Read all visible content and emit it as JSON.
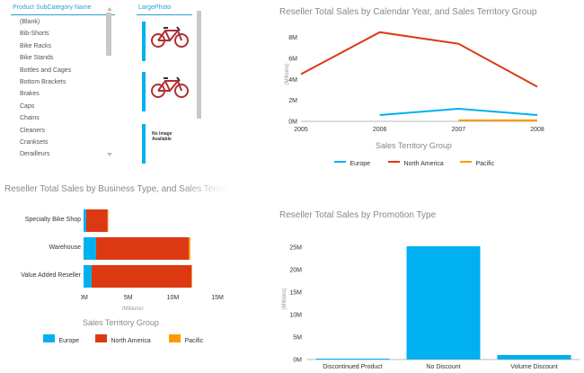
{
  "subcategory_slicer": {
    "header": "Product SubCategory Name",
    "items": [
      "(Blank)",
      "Bib-Shorts",
      "Bike Racks",
      "Bike Stands",
      "Bottles and Cages",
      "Bottom Brackets",
      "Brakes",
      "Caps",
      "Chains",
      "Cleaners",
      "Cranksets",
      "Derailleurs"
    ]
  },
  "photo_slicer": {
    "header": "LargePhoto",
    "no_image_text": "No Image Available"
  },
  "colors": {
    "europe": "#00b0f0",
    "north_america": "#dc3912",
    "pacific": "#ff9900",
    "accent": "#2a9fd6"
  },
  "legend": {
    "title": "Sales Territory Group",
    "europe": "Europe",
    "north_america": "North America",
    "pacific": "Pacific"
  },
  "chart_data": [
    {
      "type": "line",
      "title": "Reseller Total Sales by Calendar Year, and Sales Territory Group",
      "ylabel": "(Millions)",
      "x": [
        2005,
        2006,
        2007,
        2008
      ],
      "x_ticks": [
        "2005",
        "2006",
        "2007",
        "2008"
      ],
      "y_ticks": [
        "0M",
        "2M",
        "4M",
        "6M",
        "8M"
      ],
      "ylim": [
        0,
        9
      ],
      "series": [
        {
          "name": "North America",
          "values": [
            4.5,
            8.5,
            7.4,
            3.3
          ]
        },
        {
          "name": "Europe",
          "values": [
            null,
            0.6,
            1.2,
            0.6
          ]
        },
        {
          "name": "Pacific",
          "values": [
            null,
            null,
            0.1,
            0.1
          ]
        }
      ]
    },
    {
      "type": "bar",
      "orientation": "horizontal",
      "stacked": true,
      "title": "Reseller Total Sales by Business Type, and Sales Territory Group",
      "xlabel": "(Millions)",
      "categories": [
        "Specialty Bike Shop",
        "Warehouse",
        "Value Added Reseller"
      ],
      "x_ticks": [
        "0M",
        "5M",
        "10M",
        "15M"
      ],
      "xlim": [
        0,
        16
      ],
      "series": [
        {
          "name": "Europe",
          "values": [
            0.3,
            1.4,
            0.9
          ]
        },
        {
          "name": "North America",
          "values": [
            2.4,
            10.4,
            11.2
          ]
        },
        {
          "name": "Pacific",
          "values": [
            0.02,
            0.15,
            0.05
          ]
        }
      ]
    },
    {
      "type": "bar",
      "title": "Reseller Total Sales by Promotion Type",
      "ylabel": "(Millions)",
      "categories": [
        "Discontinued Product",
        "No Discount",
        "Volume Discount"
      ],
      "y_ticks": [
        "0M",
        "5M",
        "10M",
        "15M",
        "20M",
        "25M"
      ],
      "ylim": [
        0,
        27
      ],
      "values": [
        0.2,
        25.2,
        1.0
      ]
    }
  ]
}
